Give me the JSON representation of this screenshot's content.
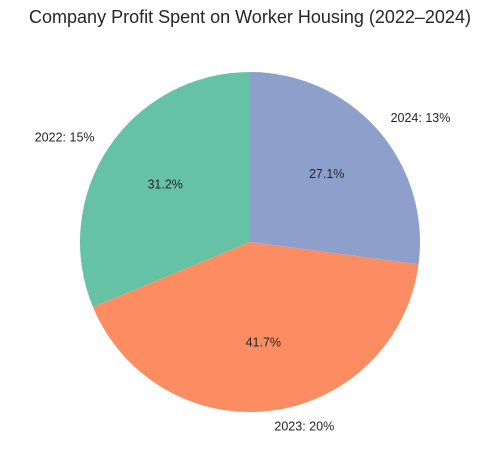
{
  "chart_data": {
    "type": "pie",
    "title": "Company Profit Spent on Worker Housing (2022–2024)",
    "categories": [
      "2022: 15%",
      "2023: 20%",
      "2024: 13%"
    ],
    "values": [
      15,
      20,
      13
    ],
    "percent_labels": [
      "31.2%",
      "41.7%",
      "27.1%"
    ],
    "colors": [
      "#66c2a5",
      "#fc8d62",
      "#8da0cb"
    ],
    "start_angle_deg": 90,
    "direction": "counterclockwise",
    "legend": "none"
  }
}
